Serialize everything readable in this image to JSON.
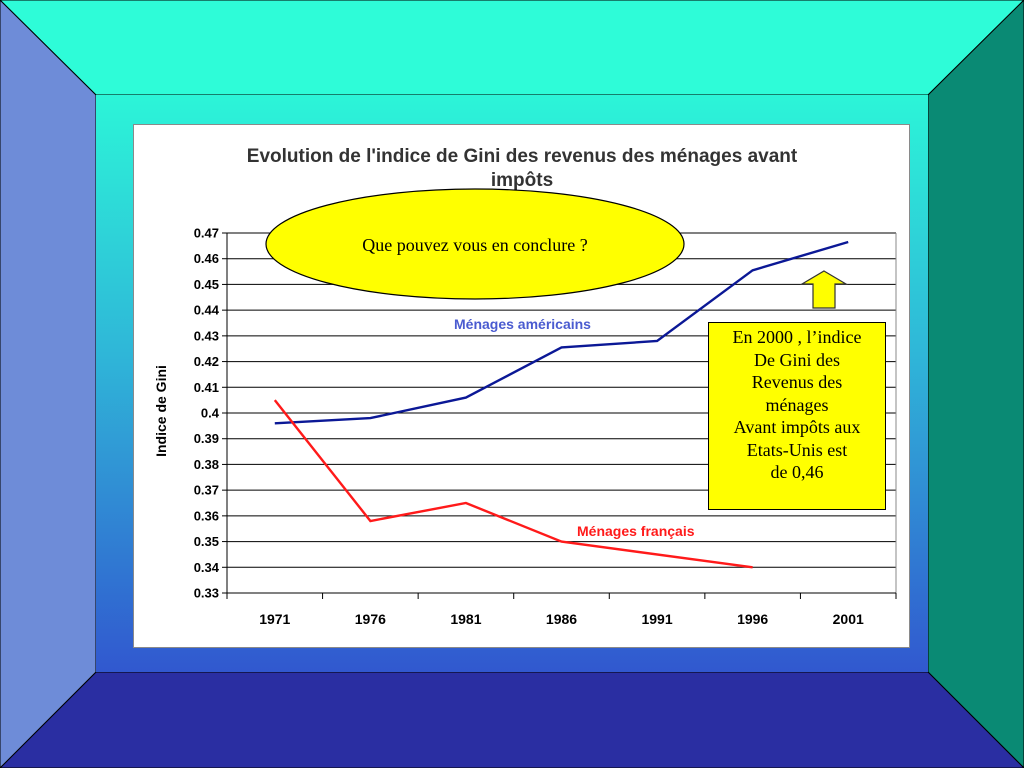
{
  "slide": {
    "colors": {
      "frame_top": "#2efcd8",
      "frame_right": "#0a8a74",
      "frame_bottom": "#2a2ea2",
      "frame_left": "#6e8cd8"
    }
  },
  "bubble": {
    "text": "Que pouvez vous en conclure ?",
    "color": "#ffff00"
  },
  "callout": {
    "lines": [
      "En 2000 , l’indice",
      "De Gini des",
      "Revenus des",
      "ménages",
      "Avant impôts aux",
      "Etats-Unis est",
      "de 0,46"
    ],
    "color": "#ffff00"
  },
  "arrow": {
    "icon": "up-arrow-icon",
    "color": "#ffff00"
  },
  "chart_data": {
    "type": "line",
    "title_lines": [
      "Evolution de l'indice de Gini des revenus des ménages avant",
      "impôts"
    ],
    "xlabel": "",
    "ylabel": "Indice de Gini",
    "categories": [
      "1971",
      "1976",
      "1981",
      "1986",
      "1991",
      "1996",
      "2001"
    ],
    "ylim": [
      0.33,
      0.47
    ],
    "yticks": [
      "0.47",
      "0.46",
      "0.45",
      "0.44",
      "0.43",
      "0.42",
      "0.41",
      "0.4",
      "0.39",
      "0.38",
      "0.37",
      "0.36",
      "0.35",
      "0.34",
      "0.33"
    ],
    "grid": true,
    "series": [
      {
        "name": "Ménages américains",
        "color": "#0b1896",
        "points": [
          [
            1971,
            0.396
          ],
          [
            1976,
            0.398
          ],
          [
            1981,
            0.406
          ],
          [
            1986,
            0.4255
          ],
          [
            1991,
            0.428
          ],
          [
            1996,
            0.4555
          ],
          [
            2001,
            0.4665
          ]
        ]
      },
      {
        "name": "Ménages français",
        "color": "#ff1a1a",
        "points": [
          [
            1971,
            0.405
          ],
          [
            1976,
            0.358
          ],
          [
            1981,
            0.365
          ],
          [
            1986,
            0.35
          ],
          [
            1996,
            0.34
          ]
        ]
      }
    ]
  }
}
